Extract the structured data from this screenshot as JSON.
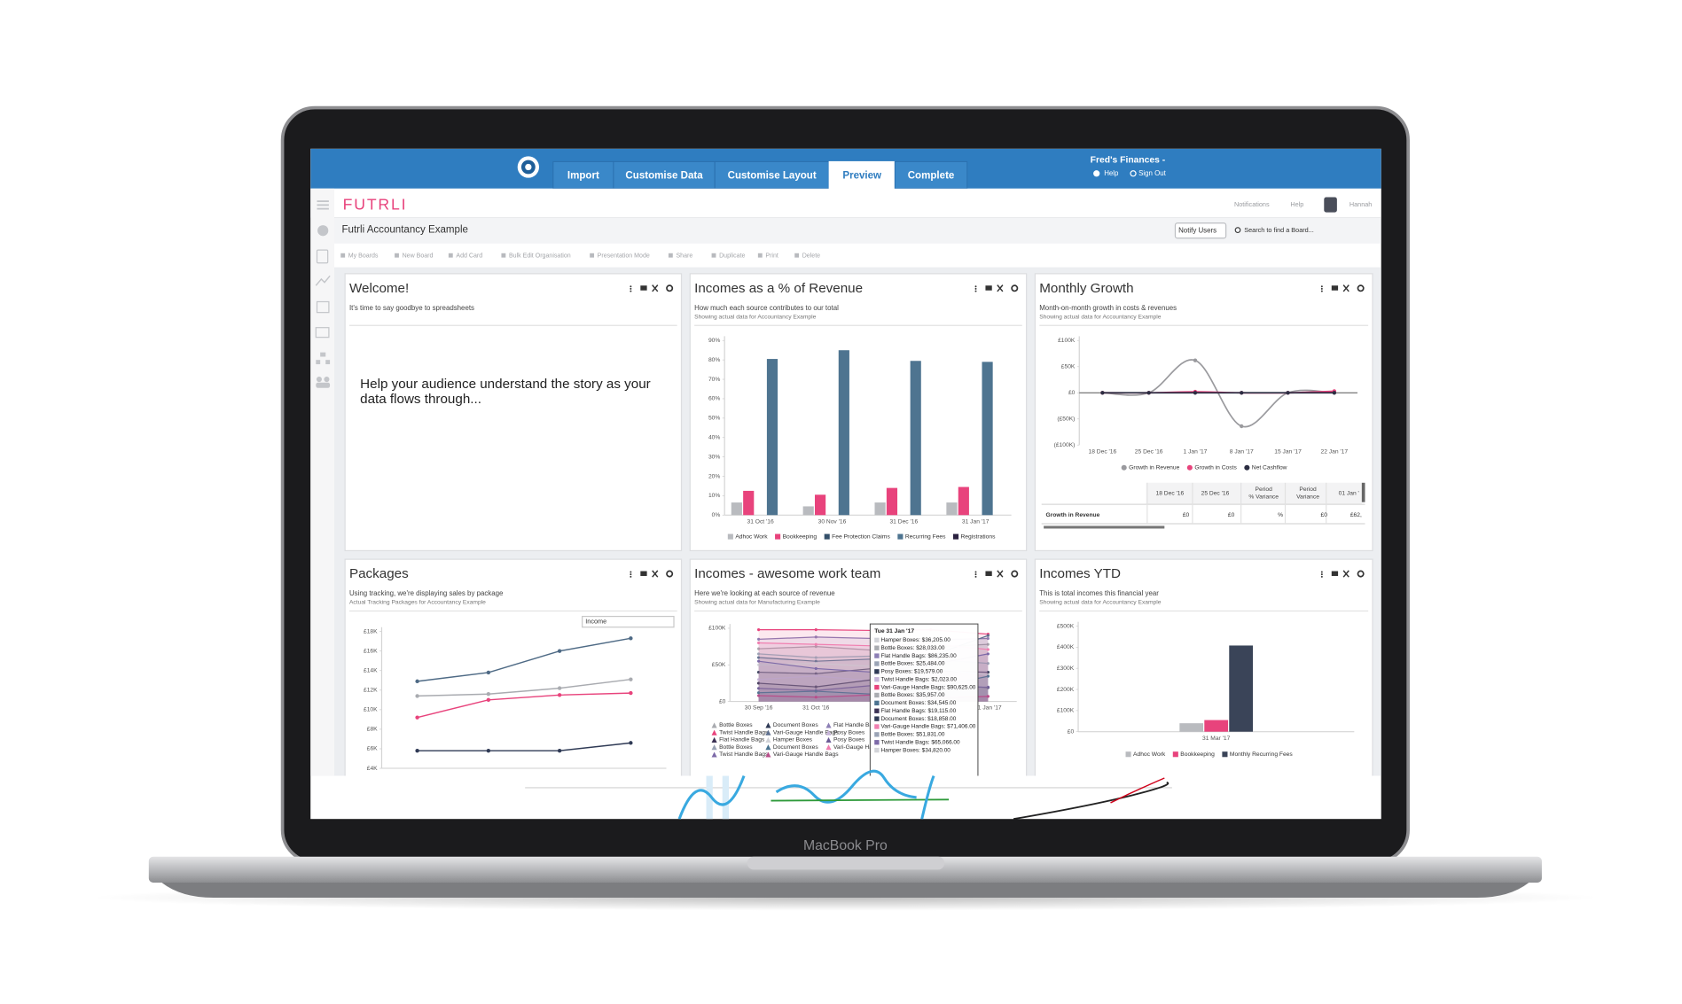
{
  "app": {
    "device_label": "MacBook Pro",
    "tabs": [
      "Import",
      "Customise Data",
      "Customise Layout",
      "Preview",
      "Complete"
    ],
    "active_tab": 3,
    "account": "Fred's Finances -",
    "account_links": [
      "Help",
      "Sign Out"
    ],
    "brand": "FUTRLI",
    "header_links": [
      "Notifications",
      "Help"
    ],
    "user": "Hannah",
    "board_title": "Futrli Accountancy Example",
    "notify_button": "Notify Users",
    "search_placeholder": "Search to find a Board...",
    "toolbar": [
      "My Boards",
      "New Board",
      "Add Card",
      "Bulk Edit Organisation",
      "Presentation Mode",
      "Share",
      "Duplicate",
      "Print",
      "Delete"
    ],
    "welcome": {
      "title": "Welcome!",
      "subtitle": "It's time to say goodbye to spreadsheets",
      "body": [
        "Help your audience understand the story as your",
        "data flows through..."
      ]
    },
    "growth_table": {
      "columns": [
        "18 Dec '16",
        "25 Dec '16",
        [
          "Period",
          "% Variance"
        ],
        [
          "Period",
          "Variance"
        ],
        "01 Jan '"
      ],
      "rows": [
        [
          "Growth in Revenue",
          "£0",
          "£0",
          "%",
          "£0",
          "£62,"
        ]
      ]
    },
    "packages_filter": "Income",
    "tooltip": {
      "header": "Tue 31 Jan '17",
      "rows": [
        {
          "text": "Hamper Boxes: $36,205.00",
          "color": "#d2d3d8"
        },
        {
          "text": "Bottle Boxes: $28,033.00",
          "color": "#a9abb0"
        },
        {
          "text": "Flat Handle Bags: $86,235.00",
          "color": "#8c7fb5"
        },
        {
          "text": "Bottle Boxes: $25,484.00",
          "color": "#9aa3b5"
        },
        {
          "text": "Posy Boxes: $19,579.00",
          "color": "#2f3a55"
        },
        {
          "text": "Twist Handle Bags: $2,023.00",
          "color": "#c6b4d8"
        },
        {
          "text": "Vari-Gauge Handle Bags: $90,625.00",
          "color": "#e8437c"
        },
        {
          "text": "Bottle Boxes: $35,957.00",
          "color": "#a9abb0"
        },
        {
          "text": "Document Boxes: $34,545.00",
          "color": "#4b7390"
        },
        {
          "text": "Flat Handle Bags: $19,115.00",
          "color": "#3b3154"
        },
        {
          "text": "Document Boxes: $18,858.00",
          "color": "#2f3a55"
        },
        {
          "text": "Vari-Gauge Handle Bags: $71,406.00",
          "color": "#f07fb0"
        },
        {
          "text": "Bottle Boxes: $51,831.00",
          "color": "#9aa3b5"
        },
        {
          "text": "Twist Handle Bags: $65,066.00",
          "color": "#7d6aa8"
        },
        {
          "text": "Hamper Boxes: $34,820.00",
          "color": "#d2d3d8"
        }
      ]
    }
  },
  "chart_data": [
    {
      "type": "bar",
      "title": "Incomes as a % of Revenue",
      "subtitle": "How much each source contributes to our total",
      "caption": "Showing actual data for Accountancy Example",
      "categories": [
        "31 Oct '16",
        "30 Nov '16",
        "31 Dec '16",
        "31 Jan '17"
      ],
      "series": [
        {
          "name": "Adhoc Work",
          "color": "#b9bbbf",
          "values": [
            6.5,
            4.5,
            6.5,
            6.5
          ]
        },
        {
          "name": "Bookkeeping",
          "color": "#e8437c",
          "values": [
            12.5,
            10.5,
            14,
            14.5
          ]
        },
        {
          "name": "Fee Protection Claims",
          "color": "#34506a",
          "values": [
            0,
            0,
            0,
            0
          ]
        },
        {
          "name": "Recurring Fees",
          "color": "#4e7490",
          "values": [
            80.5,
            85,
            79.5,
            79
          ]
        },
        {
          "name": "Registrations",
          "color": "#2b2240",
          "values": [
            0,
            0,
            0,
            0
          ]
        }
      ],
      "ylim": [
        0,
        90
      ],
      "yticks": [
        {
          "value": 0,
          "label": "0%"
        },
        {
          "value": 10,
          "label": "10%"
        },
        {
          "value": 20,
          "label": "20%"
        },
        {
          "value": 30,
          "label": "30%"
        },
        {
          "value": 40,
          "label": "40%"
        },
        {
          "value": 50,
          "label": "50%"
        },
        {
          "value": 60,
          "label": "60%"
        },
        {
          "value": 70,
          "label": "70%"
        },
        {
          "value": 80,
          "label": "80%"
        },
        {
          "value": 90,
          "label": "90%"
        }
      ],
      "grid": false,
      "legend": "bottom"
    },
    {
      "type": "line",
      "smooth": true,
      "title": "Monthly Growth",
      "subtitle": "Month-on-month growth in costs & revenues",
      "caption": "Showing actual data for Accountancy Example",
      "categories": [
        "18 Dec '16",
        "25 Dec '16",
        "1 Jan '17",
        "8 Jan '17",
        "15 Jan '17",
        "22 Jan '17"
      ],
      "series": [
        {
          "name": "Growth in Revenue",
          "color": "#9a9a9e",
          "values": [
            0,
            0,
            62000,
            -64000,
            0,
            0
          ]
        },
        {
          "name": "Growth in Costs",
          "color": "#e8437c",
          "values": [
            0,
            0,
            2000,
            0,
            0,
            3000
          ]
        },
        {
          "name": "Net Cashflow",
          "color": "#2b2d42",
          "values": [
            0,
            0,
            0,
            0,
            0,
            0
          ]
        }
      ],
      "ylim": [
        -100000,
        100000
      ],
      "yticks": [
        {
          "value": -100000,
          "label": "(£100K)"
        },
        {
          "value": -50000,
          "label": "(£50K)"
        },
        {
          "value": 0,
          "label": "£0"
        },
        {
          "value": 50000,
          "label": "£50K"
        },
        {
          "value": 100000,
          "label": "£100K"
        }
      ],
      "grid": false,
      "legend": "bottom"
    },
    {
      "type": "line",
      "smooth": false,
      "title": "Packages",
      "subtitle": "Using tracking, we're displaying sales by package",
      "caption": "Actual Tracking Packages for Accountancy Example",
      "categories": [
        null,
        null,
        null,
        null
      ],
      "series": [
        {
          "color": "#4e6a85",
          "values": [
            12900,
            13800,
            16000,
            17300
          ]
        },
        {
          "color": "#a9abb0",
          "values": [
            11400,
            11600,
            12200,
            13100
          ]
        },
        {
          "color": "#e8437c",
          "values": [
            9200,
            11000,
            11500,
            11700
          ]
        },
        {
          "color": "#2f3a55",
          "values": [
            5800,
            5800,
            5800,
            6600
          ]
        }
      ],
      "ylim": [
        4000,
        18000
      ],
      "yticks": [
        {
          "value": 4000,
          "label": "£4K"
        },
        {
          "value": 6000,
          "label": "£6K"
        },
        {
          "value": 8000,
          "label": "£8K"
        },
        {
          "value": 10000,
          "label": "£10K"
        },
        {
          "value": 12000,
          "label": "£12K"
        },
        {
          "value": 14000,
          "label": "£14K"
        },
        {
          "value": 16000,
          "label": "£16K"
        },
        {
          "value": 18000,
          "label": "£18K"
        }
      ],
      "grid": false
    },
    {
      "type": "area",
      "title": "Incomes - awesome work team",
      "subtitle": "Here we're looking at each source of revenue",
      "caption": "Showing actual data for Manufacturing Example",
      "categories": [
        "30 Sep '16",
        "31 Oct '16",
        null,
        null,
        "31 Jan '17"
      ],
      "series": [
        {
          "name": "Bottle Boxes",
          "color": "#a9abb0",
          "values": [
            72000,
            75000,
            70000,
            74000,
            78000
          ]
        },
        {
          "name": "Document Boxes",
          "color": "#2f3a55",
          "values": [
            40000,
            38000,
            45000,
            42000,
            40000
          ]
        },
        {
          "name": "Flat Handle Bags",
          "color": "#8c7fb5",
          "values": [
            85000,
            88000,
            86000,
            84000,
            86000
          ]
        },
        {
          "name": "Twist Handle Bags",
          "color": "#e8437c",
          "values": [
            98000,
            98000,
            97000,
            98000,
            92000
          ]
        },
        {
          "name": "Vari-Gauge Handle Bags",
          "color": "#5d6f8e",
          "values": [
            60000,
            55000,
            58000,
            62000,
            90000
          ]
        },
        {
          "name": "Posy Boxes",
          "color": "#c6b4d8",
          "values": [
            30000,
            35000,
            28000,
            22000,
            20000
          ]
        },
        {
          "name": "Flat Handle Bags",
          "color": "#3b3154",
          "values": [
            25000,
            20000,
            30000,
            24000,
            19000
          ]
        },
        {
          "name": "Hamper Boxes",
          "color": "#d2d3d8",
          "values": [
            50000,
            52000,
            48000,
            46000,
            36000
          ]
        },
        {
          "name": "Posy Boxes",
          "color": "#6b5b95",
          "values": [
            18000,
            15000,
            22000,
            20000,
            19500
          ]
        },
        {
          "name": "Bottle Boxes",
          "color": "#9aa3b5",
          "values": [
            65000,
            60000,
            62000,
            58000,
            52000
          ]
        },
        {
          "name": "Document Boxes",
          "color": "#4b7390",
          "values": [
            12000,
            14000,
            10000,
            18000,
            34500
          ]
        },
        {
          "name": "Vari-Gauge Handle Bags",
          "color": "#f07fb0",
          "values": [
            80000,
            78000,
            76000,
            79000,
            71000
          ]
        },
        {
          "name": "Twist Handle Bags",
          "color": "#7d6aa8",
          "values": [
            55000,
            45000,
            40000,
            50000,
            65000
          ]
        },
        {
          "name": "Vari-Gauge Handle Bags",
          "color": "#b84d8a",
          "values": [
            8000,
            6000,
            9000,
            5000,
            7000
          ]
        }
      ],
      "ylim": [
        0,
        100000
      ],
      "yticks": [
        {
          "value": 0,
          "label": "£0"
        },
        {
          "value": 50000,
          "label": "£50K"
        },
        {
          "value": 100000,
          "label": "£100K"
        }
      ],
      "grid": false,
      "legend": "bottom"
    },
    {
      "type": "bar",
      "title": "Incomes YTD",
      "subtitle": "This is total incomes this financial year",
      "caption": "Showing actual data for Accountancy Example",
      "categories": [
        "31 Mar '17"
      ],
      "series": [
        {
          "name": "Adhoc Work",
          "color": "#b9bbbf",
          "values": [
            40000
          ]
        },
        {
          "name": "Bookkeeping",
          "color": "#e8437c",
          "values": [
            55000
          ]
        },
        {
          "name": "Monthly Recurring Fees",
          "color": "#3a4458",
          "values": [
            408000
          ]
        }
      ],
      "ylim": [
        0,
        500000
      ],
      "yticks": [
        {
          "value": 0,
          "label": "£0"
        },
        {
          "value": 100000,
          "label": "£100K"
        },
        {
          "value": 200000,
          "label": "£200K"
        },
        {
          "value": 300000,
          "label": "£300K"
        },
        {
          "value": 400000,
          "label": "£400K"
        },
        {
          "value": 500000,
          "label": "£500K"
        }
      ],
      "grid": false,
      "legend": "bottom"
    }
  ]
}
